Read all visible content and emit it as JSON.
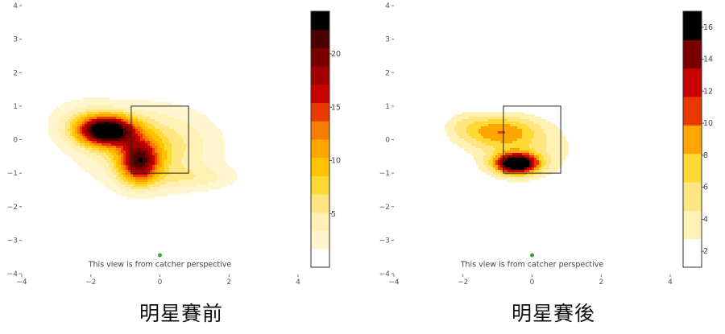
{
  "chart_data": [
    {
      "type": "heatmap",
      "caption": "明星賽前",
      "note": "This view is from catcher perspective",
      "xlim": [
        -4,
        4
      ],
      "ylim": [
        -4,
        4
      ],
      "x_ticks": [
        -4,
        -2,
        0,
        2,
        4
      ],
      "y_ticks": [
        4,
        3,
        2,
        1,
        0,
        -1,
        -2,
        -3,
        -4
      ],
      "strike_zone": {
        "x": [
          -0.83,
          0.83
        ],
        "y": [
          -1.0,
          1.0
        ]
      },
      "home_marker": {
        "x": 0,
        "y": -3.45,
        "color": "#3aa43a"
      },
      "colorbar": {
        "range": [
          0,
          24
        ],
        "tick_values": [
          5,
          10,
          15,
          20
        ],
        "colors": [
          "#ffffff",
          "#fff6d0",
          "#fff0b3",
          "#ffe680",
          "#ffd934",
          "#ffc300",
          "#ffa500",
          "#f77d00",
          "#ea3900",
          "#c80000",
          "#a00000",
          "#7a0000",
          "#4a0000",
          "#000000"
        ]
      },
      "hotspots": [
        {
          "x": -1.55,
          "y": 0.27,
          "peak": 24,
          "sx": 0.55,
          "sy": 0.3
        },
        {
          "x": -0.6,
          "y": -0.65,
          "peak": 16.5,
          "sx": 0.4,
          "sy": 0.45
        },
        {
          "x": -0.3,
          "y": -0.2,
          "peak": 7,
          "sx": 1.3,
          "sy": 0.8
        },
        {
          "x": 1.0,
          "y": -1.15,
          "peak": 3,
          "sx": 0.9,
          "sy": 0.25
        },
        {
          "x": -2.3,
          "y": 0.55,
          "peak": 3,
          "sx": 0.7,
          "sy": 0.5
        }
      ]
    },
    {
      "type": "heatmap",
      "caption": "明星賽後",
      "note": "This view is from catcher perspective",
      "xlim": [
        -4,
        4
      ],
      "ylim": [
        -4,
        4
      ],
      "x_ticks": [
        -4,
        -2,
        0,
        2,
        4
      ],
      "y_ticks": [
        4,
        3,
        2,
        1,
        0,
        -1,
        -2,
        -3,
        -4
      ],
      "strike_zone": {
        "x": [
          -0.83,
          0.83
        ],
        "y": [
          -1.0,
          1.0
        ]
      },
      "home_marker": {
        "x": 0,
        "y": -3.45,
        "color": "#3aa43a"
      },
      "colorbar": {
        "range": [
          1,
          17
        ],
        "tick_values": [
          2,
          4,
          6,
          8,
          10,
          12,
          14,
          16
        ],
        "colors": [
          "#ffffff",
          "#fff0b3",
          "#ffe680",
          "#ffd934",
          "#ffa500",
          "#ea3900",
          "#c80000",
          "#7a0000",
          "#000000"
        ]
      },
      "hotspots": [
        {
          "x": -0.45,
          "y": -0.72,
          "peak": 17,
          "sx": 0.45,
          "sy": 0.22
        },
        {
          "x": -0.9,
          "y": 0.25,
          "peak": 7,
          "sx": 0.75,
          "sy": 0.35
        },
        {
          "x": -0.2,
          "y": -0.3,
          "peak": 4,
          "sx": 1.4,
          "sy": 0.75
        },
        {
          "x": -2.0,
          "y": 0.45,
          "peak": 2.5,
          "sx": 0.5,
          "sy": 0.35
        }
      ]
    }
  ]
}
